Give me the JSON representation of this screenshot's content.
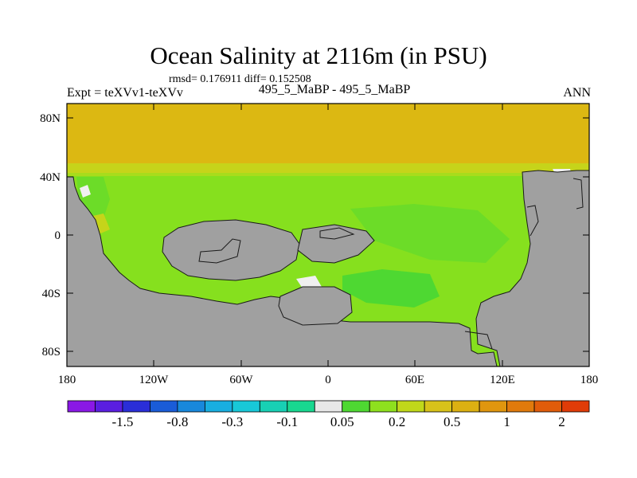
{
  "title": "Ocean Salinity at 2116m (in PSU)",
  "stats": "rmsd= 0.176911 diff= 0.152508",
  "left_label": "Expt = teXVv1-teXVv",
  "center_label": "495_5_MaBP - 495_5_MaBP",
  "right_label": "ANN",
  "lat_ticks": [
    "80N",
    "40N",
    "0",
    "40S",
    "80S"
  ],
  "lon_ticks": [
    "180",
    "120W",
    "60W",
    "0",
    "60E",
    "120E",
    "180"
  ],
  "colorbar": {
    "colors": [
      "#8a18e6",
      "#5a1ee0",
      "#2a2ed8",
      "#1a5cd8",
      "#1888dc",
      "#18aee0",
      "#18c8d8",
      "#18d0b4",
      "#18d890",
      "#e8e8e8",
      "#4ed832",
      "#8ee01e",
      "#c0d81a",
      "#d8c21a",
      "#dcb012",
      "#e0960e",
      "#e07a0c",
      "#e05c0a",
      "#e03c08"
    ],
    "labels": [
      "-1.5",
      "-0.8",
      "-0.3",
      "-0.1",
      "0.05",
      "0.2",
      "0.5",
      "1",
      "2"
    ]
  },
  "colors": {
    "land": "#a0a0a0",
    "north_band": "#dcb812",
    "transition": "#c6d41a",
    "ocean": "#86e01e",
    "green_patch": "#4ed832",
    "white": "#f0f0f0"
  }
}
